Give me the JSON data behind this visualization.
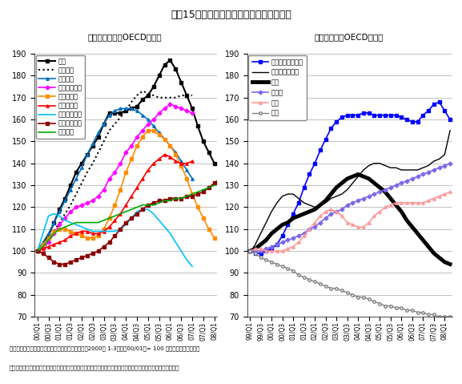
{
  "title": "主要15カ国の実質ベースの住宅価格の推移",
  "subtitle_left": "（ヨーロッパのOECD諸国）",
  "subtitle_right": "（環太平洋のOECD諸国）",
  "note1": "（注）住宅価格（指数）を消費者物価で除した後、2000年 1-3月期（00/01）= 100 となるように指数化。",
  "note2": "（資料）日本のみ住宅地値（不動産経済研究所）、他は各国政府統計（住宅価格、消費者物価）に基づいて作成",
  "ylim": [
    70,
    190
  ],
  "yticks": [
    70,
    80,
    90,
    100,
    110,
    120,
    130,
    140,
    150,
    160,
    170,
    180,
    190
  ],
  "europe": {
    "英国": {
      "color": "#000000",
      "linestyle": "-",
      "marker": "s",
      "markersize": 2.5,
      "linewidth": 1.5,
      "values": [
        100,
        103,
        107,
        113,
        119,
        124,
        130,
        136,
        140,
        144,
        148,
        152,
        158,
        163,
        163,
        163,
        164,
        165,
        166,
        169,
        171,
        175,
        180,
        185,
        187,
        183,
        177,
        171,
        165,
        157,
        150,
        145,
        140
      ]
    },
    "フランス": {
      "color": "#000000",
      "linestyle": ":",
      "marker": null,
      "markersize": 0,
      "linewidth": 1.5,
      "values": [
        100,
        102,
        105,
        109,
        113,
        117,
        121,
        126,
        131,
        136,
        140,
        145,
        150,
        155,
        158,
        161,
        164,
        168,
        171,
        173,
        172,
        171,
        170,
        170,
        170,
        170,
        171,
        171,
        171
      ]
    },
    "スペイン": {
      "color": "#0070C0",
      "linestyle": "-",
      "marker": "^",
      "markersize": 2.5,
      "linewidth": 1.2,
      "values": [
        100,
        104,
        108,
        113,
        118,
        123,
        128,
        133,
        138,
        144,
        149,
        154,
        158,
        162,
        164,
        165,
        165,
        165,
        164,
        162,
        160,
        157,
        154,
        151,
        148,
        145,
        141,
        137,
        133
      ]
    },
    "スウェーデン": {
      "color": "#FF00FF",
      "linestyle": "-",
      "marker": "D",
      "markersize": 2.5,
      "linewidth": 1.2,
      "values": [
        100,
        101,
        104,
        108,
        112,
        115,
        118,
        120,
        121,
        122,
        123,
        125,
        128,
        133,
        136,
        140,
        145,
        148,
        152,
        155,
        158,
        160,
        163,
        165,
        167,
        166,
        165,
        164,
        163
      ]
    },
    "デンマーク": {
      "color": "#FF8C00",
      "linestyle": "-",
      "marker": "s",
      "markersize": 2.5,
      "linewidth": 1.2,
      "values": [
        100,
        103,
        106,
        109,
        110,
        110,
        109,
        108,
        107,
        106,
        106,
        107,
        110,
        115,
        121,
        128,
        136,
        142,
        148,
        152,
        155,
        155,
        153,
        151,
        148,
        144,
        139,
        133,
        126,
        120,
        115,
        110,
        106
      ]
    },
    "ノルウェー": {
      "color": "#FF0000",
      "linestyle": "-",
      "marker": "^",
      "markersize": 2.5,
      "linewidth": 1.2,
      "values": [
        100,
        101,
        102,
        103,
        104,
        105,
        107,
        108,
        109,
        109,
        108,
        108,
        109,
        111,
        114,
        117,
        121,
        125,
        129,
        133,
        137,
        140,
        142,
        144,
        143,
        141,
        140,
        140,
        141
      ]
    },
    "アイルランド": {
      "color": "#00BFFF",
      "linestyle": "-",
      "marker": null,
      "markersize": 0,
      "linewidth": 1.2,
      "values": [
        100,
        108,
        116,
        117,
        116,
        114,
        113,
        112,
        111,
        110,
        109,
        109,
        109,
        109,
        109,
        110,
        112,
        115,
        118,
        119,
        119,
        117,
        114,
        111,
        108,
        104,
        100,
        96,
        93
      ]
    },
    "フィンランド": {
      "color": "#8B0000",
      "linestyle": "-",
      "marker": "s",
      "markersize": 2.5,
      "linewidth": 1.2,
      "values": [
        100,
        99,
        97,
        95,
        94,
        94,
        95,
        96,
        97,
        98,
        99,
        100,
        102,
        104,
        107,
        110,
        113,
        115,
        117,
        119,
        121,
        122,
        123,
        123,
        124,
        124,
        124,
        125,
        125,
        126,
        127,
        129,
        131,
        133
      ]
    },
    "オランダ": {
      "color": "#00AA00",
      "linestyle": "-",
      "marker": null,
      "markersize": 0,
      "linewidth": 1.2,
      "values": [
        100,
        102,
        105,
        108,
        110,
        111,
        112,
        113,
        113,
        113,
        113,
        113,
        114,
        115,
        116,
        117,
        118,
        119,
        120,
        121,
        121,
        121,
        122,
        123,
        123,
        124,
        124,
        125,
        126,
        127,
        128,
        129,
        130
      ]
    }
  },
  "pacific": {
    "ニュージーランド": {
      "color": "#0000FF",
      "linestyle": "-",
      "marker": "s",
      "markersize": 2.5,
      "linewidth": 1.2,
      "values": [
        100,
        99,
        99,
        100,
        101,
        103,
        107,
        112,
        117,
        122,
        129,
        135,
        140,
        146,
        151,
        156,
        159,
        161,
        162,
        162,
        162,
        163,
        163,
        162,
        162,
        162,
        162,
        162,
        161,
        160,
        159,
        159,
        162,
        164,
        167,
        168,
        164,
        160
      ]
    },
    "オーストラリア": {
      "color": "#000000",
      "linestyle": "-",
      "marker": null,
      "markersize": 0,
      "linewidth": 1.0,
      "values": [
        99,
        103,
        108,
        113,
        118,
        122,
        125,
        126,
        126,
        124,
        122,
        121,
        120,
        121,
        122,
        124,
        125,
        126,
        128,
        131,
        134,
        137,
        139,
        140,
        140,
        139,
        138,
        138,
        137,
        137,
        137,
        137,
        138,
        139,
        141,
        142,
        144,
        155
      ]
    },
    "米国": {
      "color": "#000000",
      "linestyle": "-",
      "marker": null,
      "markersize": 0,
      "linewidth": 3.5,
      "values": [
        100,
        101,
        103,
        105,
        108,
        110,
        112,
        113,
        115,
        116,
        117,
        118,
        119,
        121,
        123,
        126,
        129,
        131,
        133,
        134,
        135,
        134,
        133,
        131,
        129,
        127,
        124,
        121,
        118,
        114,
        111,
        108,
        105,
        102,
        99,
        97,
        95,
        94
      ]
    },
    "カナダ": {
      "color": "#7B68EE",
      "linestyle": "-",
      "marker": "D",
      "markersize": 2.5,
      "linewidth": 1.2,
      "values": [
        100,
        100,
        100,
        101,
        102,
        103,
        104,
        105,
        106,
        107,
        108,
        110,
        111,
        113,
        115,
        117,
        118,
        119,
        121,
        122,
        123,
        124,
        125,
        126,
        127,
        128,
        129,
        130,
        131,
        132,
        133,
        134,
        135,
        136,
        137,
        138,
        139,
        140
      ]
    },
    "韓国": {
      "color": "#FF9999",
      "linestyle": "-",
      "marker": "^",
      "markersize": 2.5,
      "linewidth": 1.2,
      "values": [
        100,
        101,
        101,
        100,
        100,
        100,
        100,
        101,
        102,
        104,
        107,
        110,
        113,
        116,
        118,
        119,
        118,
        116,
        113,
        112,
        111,
        111,
        113,
        116,
        118,
        120,
        121,
        122,
        122,
        122,
        122,
        122,
        122,
        123,
        124,
        125,
        126,
        127
      ]
    },
    "日本": {
      "color": "#808080",
      "linestyle": "-",
      "marker": "o",
      "markersize": 2.5,
      "linewidth": 1.0,
      "values": [
        100,
        99,
        97,
        96,
        95,
        94,
        93,
        92,
        91,
        89,
        88,
        87,
        86,
        85,
        84,
        83,
        83,
        82,
        81,
        80,
        79,
        79,
        78,
        77,
        76,
        75,
        75,
        74,
        74,
        73,
        73,
        72,
        72,
        71,
        71,
        70,
        70,
        70
      ]
    }
  }
}
